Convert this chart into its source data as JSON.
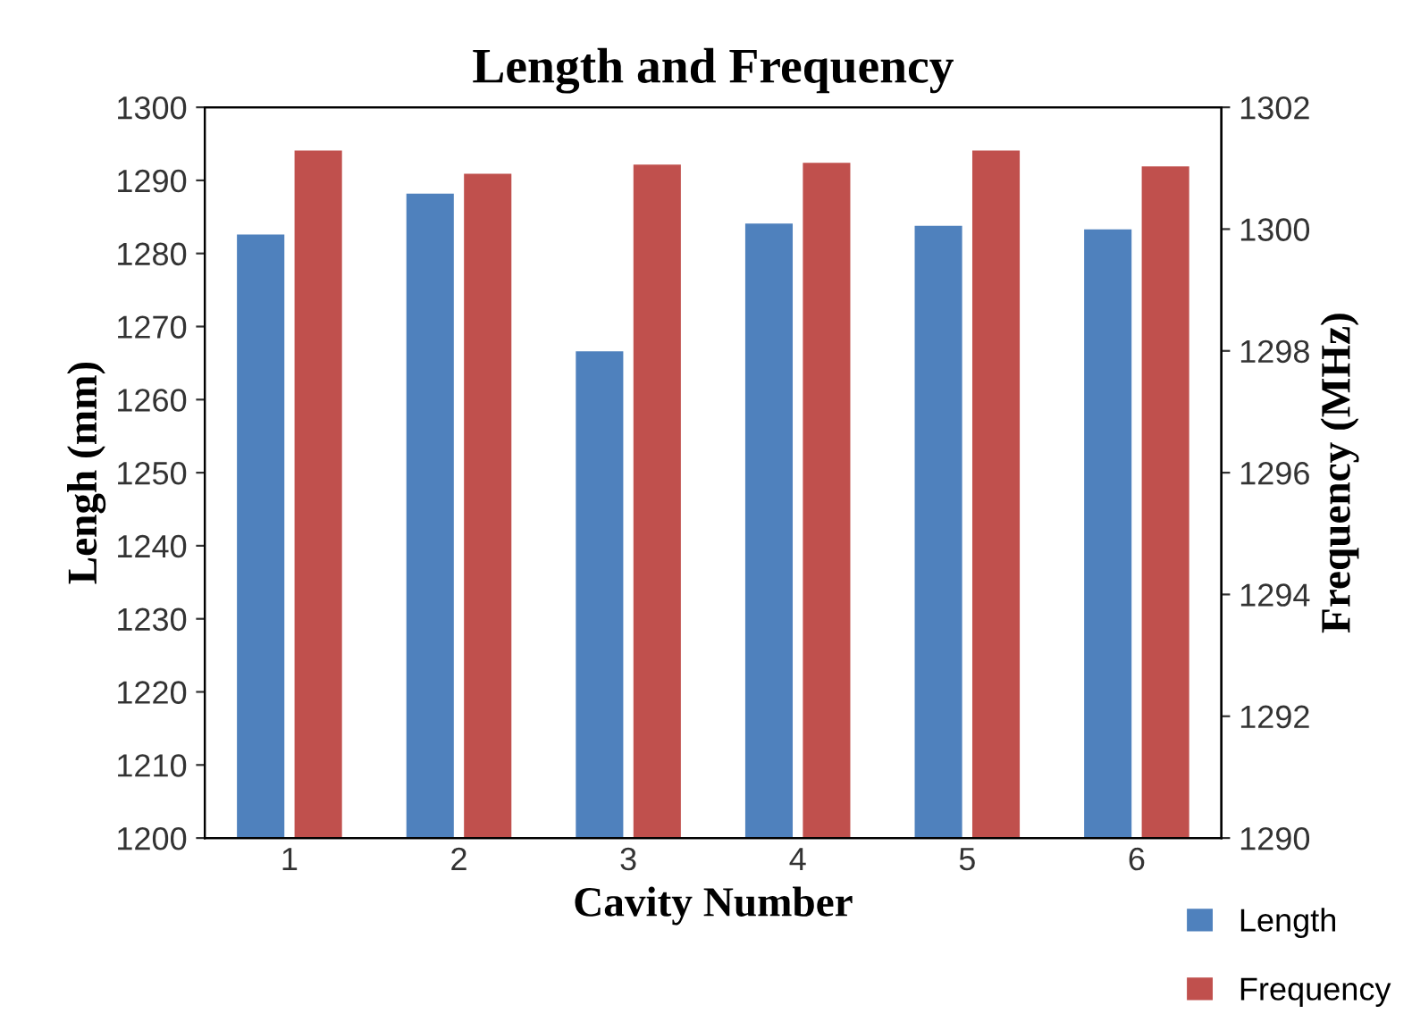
{
  "chart_data": {
    "type": "bar",
    "title": "Length and Frequency",
    "xlabel": "Cavity Number",
    "ylabel": "Lengh (mm)",
    "y2label": "Frequency (MHz)",
    "categories": [
      "1",
      "2",
      "3",
      "4",
      "5",
      "6"
    ],
    "series": [
      {
        "name": "Length",
        "color": "#4f81bd",
        "values": [
          1282.6,
          1288.2,
          1266.6,
          1284.1,
          1283.8,
          1283.3
        ]
      },
      {
        "name": "Frequency",
        "color": "#c0504d",
        "axis": "y2",
        "values": [
          1301.29,
          1300.91,
          1301.06,
          1301.09,
          1301.29,
          1301.03
        ]
      }
    ],
    "ylim": [
      1200,
      1300
    ],
    "yticks": [
      1200,
      1210,
      1220,
      1230,
      1240,
      1250,
      1260,
      1270,
      1280,
      1290,
      1300
    ],
    "y2lim": [
      1290,
      1302
    ],
    "y2ticks": [
      1290,
      1292,
      1294,
      1296,
      1298,
      1300,
      1302
    ],
    "grid": false,
    "legend": "bottom right"
  }
}
